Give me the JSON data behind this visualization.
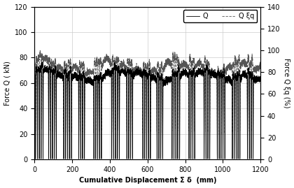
{
  "xlabel": "Cumulative Displacement Σ δ  (mm)",
  "ylabel_left": "Force Q ( kN)",
  "ylabel_right": "Force Q ξq (%)",
  "xlim": [
    0,
    1200
  ],
  "ylim_left": [
    0,
    120
  ],
  "ylim_right": [
    0,
    140
  ],
  "xticks": [
    0,
    200,
    400,
    600,
    800,
    1000,
    1200
  ],
  "yticks_left": [
    0,
    20,
    40,
    60,
    80,
    100,
    120
  ],
  "yticks_right": [
    0,
    20,
    40,
    60,
    80,
    100,
    120,
    140
  ],
  "legend_Q": "Q",
  "legend_Qq": "Q ξq",
  "background_color": "#ffffff",
  "line_color_Q": "#000000",
  "line_color_Qq": "#555555",
  "grid_color": "#cccccc",
  "Q_base": 63,
  "Qq_base": 80,
  "right_ymax": 140,
  "left_ymax": 120
}
